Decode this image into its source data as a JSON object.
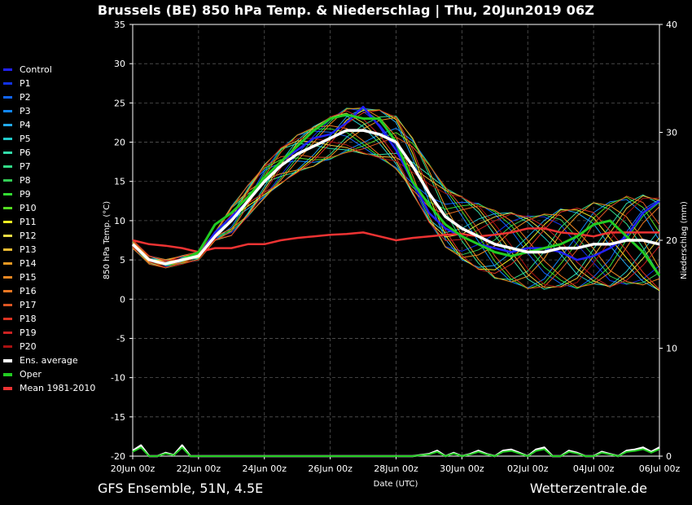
{
  "title": "Brussels  (BE)  850 hPa Temp. & Niederschlag | Thu, 20Jun2019 06Z",
  "footer_left": "GFS Ensemble, 51N, 4.5E",
  "footer_right": "Wetterzentrale.de",
  "chart_data": {
    "type": "line",
    "xlabel": "Date (UTC)",
    "ylabel": "850 hPa Temp. (°C)",
    "y2label": "Niederschlag (mm)",
    "ylim": [
      -20,
      35
    ],
    "y2lim": [
      0,
      40
    ],
    "yticks": [
      35,
      30,
      25,
      20,
      15,
      10,
      5,
      0,
      -5,
      -10,
      -15,
      -20
    ],
    "y2ticks": [
      40,
      30,
      20,
      10,
      0
    ],
    "xlim_days": [
      0,
      16
    ],
    "xticks": [
      "20Jun 00z",
      "22Jun 00z",
      "24Jun 00z",
      "26Jun 00z",
      "28Jun 00z",
      "30Jun 00z",
      "02Jul 00z",
      "04Jul 00z",
      "06Jul 00z"
    ],
    "grid": true,
    "legend_position": "left",
    "legend": [
      {
        "name": "Control",
        "color": "#2222ff"
      },
      {
        "name": "P1",
        "color": "#1133ee"
      },
      {
        "name": "P2",
        "color": "#1166ff"
      },
      {
        "name": "P3",
        "color": "#1188ff"
      },
      {
        "name": "P4",
        "color": "#22aaee"
      },
      {
        "name": "P5",
        "color": "#22cccc"
      },
      {
        "name": "P6",
        "color": "#33ddaa"
      },
      {
        "name": "P7",
        "color": "#33dd88"
      },
      {
        "name": "P8",
        "color": "#33cc55"
      },
      {
        "name": "P9",
        "color": "#33dd33"
      },
      {
        "name": "P10",
        "color": "#55dd22"
      },
      {
        "name": "P11",
        "color": "#eeee22"
      },
      {
        "name": "P12",
        "color": "#eedd44"
      },
      {
        "name": "P13",
        "color": "#eebb33"
      },
      {
        "name": "P14",
        "color": "#ee9922"
      },
      {
        "name": "P15",
        "color": "#ee8822"
      },
      {
        "name": "P16",
        "color": "#ee7722"
      },
      {
        "name": "P17",
        "color": "#dd5522"
      },
      {
        "name": "P18",
        "color": "#dd3322"
      },
      {
        "name": "P19",
        "color": "#cc2222"
      },
      {
        "name": "P20",
        "color": "#aa1111"
      },
      {
        "name": "Ens. average",
        "color": "#ffffff"
      },
      {
        "name": "Oper",
        "color": "#22cc22"
      },
      {
        "name": "Mean 1981-2010",
        "color": "#ee3333"
      }
    ],
    "ens_average_x": [
      0,
      0.5,
      1,
      1.5,
      2,
      2.5,
      3,
      3.5,
      4,
      4.5,
      5,
      5.5,
      6,
      6.5,
      7,
      7.5,
      8,
      8.5,
      9,
      9.5,
      10,
      10.5,
      11,
      11.5,
      12,
      12.5,
      13,
      13.5,
      14,
      14.5,
      15,
      15.5,
      16
    ],
    "ens_average": [
      7.0,
      5.0,
      4.5,
      5.0,
      5.5,
      8.0,
      10.0,
      12.5,
      15.0,
      17.0,
      18.5,
      19.5,
      20.5,
      21.5,
      21.5,
      21.0,
      20.0,
      17.0,
      13.5,
      10.5,
      9.0,
      8.0,
      7.0,
      6.5,
      6.0,
      6.0,
      6.5,
      6.5,
      7.0,
      7.0,
      7.5,
      7.5,
      7.0
    ],
    "oper_x": [
      0,
      0.5,
      1,
      1.5,
      2,
      2.5,
      3,
      3.5,
      4,
      4.5,
      5,
      5.5,
      6,
      6.5,
      7,
      7.5,
      8,
      8.5,
      9,
      9.5,
      10,
      10.5,
      11,
      11.5,
      12,
      12.5,
      13,
      13.5,
      14,
      14.5,
      15,
      15.5,
      16
    ],
    "oper": [
      7.0,
      5.0,
      4.5,
      5.0,
      6.0,
      9.5,
      11.0,
      13.0,
      15.5,
      17.5,
      19.5,
      21.5,
      23.0,
      23.5,
      23.0,
      23.0,
      20.0,
      15.0,
      12.0,
      9.5,
      8.0,
      7.0,
      6.0,
      5.5,
      6.0,
      6.5,
      7.0,
      8.0,
      9.5,
      10.0,
      8.0,
      6.0,
      3.0
    ],
    "mean_x": [
      0,
      0.5,
      1,
      1.5,
      2,
      2.5,
      3,
      3.5,
      4,
      4.5,
      5,
      5.5,
      6,
      6.5,
      7,
      7.5,
      8,
      8.5,
      9,
      9.5,
      10,
      10.5,
      11,
      11.5,
      12,
      12.5,
      13,
      13.5,
      14,
      14.5,
      15,
      15.5,
      16
    ],
    "mean_1981_2010": [
      7.5,
      7.0,
      6.8,
      6.5,
      6.0,
      6.5,
      6.5,
      7.0,
      7.0,
      7.5,
      7.8,
      8.0,
      8.2,
      8.3,
      8.5,
      8.0,
      7.5,
      7.8,
      8.0,
      8.2,
      8.3,
      8.0,
      8.2,
      8.5,
      9.0,
      9.0,
      8.5,
      8.3,
      8.0,
      8.5,
      8.5,
      8.5,
      8.5
    ],
    "control": [
      7.0,
      5.0,
      4.5,
      5.0,
      5.5,
      8.5,
      10.5,
      12.5,
      15.5,
      17.5,
      19.0,
      20.5,
      21.0,
      22.5,
      24.5,
      22.0,
      19.0,
      15.0,
      11.0,
      9.0,
      8.0,
      7.0,
      6.5,
      6.0,
      6.5,
      6.5,
      6.0,
      5.0,
      5.5,
      6.5,
      8.0,
      11.0,
      12.5
    ],
    "precip_x": [
      0,
      0.25,
      0.5,
      0.75,
      1,
      1.25,
      1.5,
      1.75,
      2,
      2.5,
      3,
      3.5,
      4,
      4.5,
      5,
      5.5,
      6,
      6.5,
      7,
      7.5,
      8,
      8.5,
      9,
      9.25,
      9.5,
      9.75,
      10,
      10.25,
      10.5,
      10.75,
      11,
      11.25,
      11.5,
      11.75,
      12,
      12.25,
      12.5,
      12.75,
      13,
      13.25,
      13.5,
      13.75,
      14,
      14.25,
      14.5,
      14.75,
      15,
      15.25,
      15.5,
      15.75,
      16
    ],
    "precip_avg": [
      0.5,
      1.0,
      0,
      0,
      0.3,
      0.1,
      1.0,
      0,
      0,
      0,
      0,
      0,
      0,
      0,
      0,
      0,
      0,
      0,
      0,
      0,
      0,
      0,
      0.2,
      0.5,
      0,
      0.3,
      0,
      0.2,
      0.5,
      0.2,
      0,
      0.5,
      0.6,
      0.3,
      0,
      0.6,
      0.8,
      0,
      0,
      0.5,
      0.3,
      0,
      0,
      0.4,
      0.2,
      0,
      0.5,
      0.6,
      0.8,
      0.4,
      0.8
    ]
  },
  "colors": {
    "background": "#000000",
    "grid": "#555555",
    "ens_average": "#ffffff",
    "oper": "#22cc22",
    "mean": "#ee3333"
  }
}
